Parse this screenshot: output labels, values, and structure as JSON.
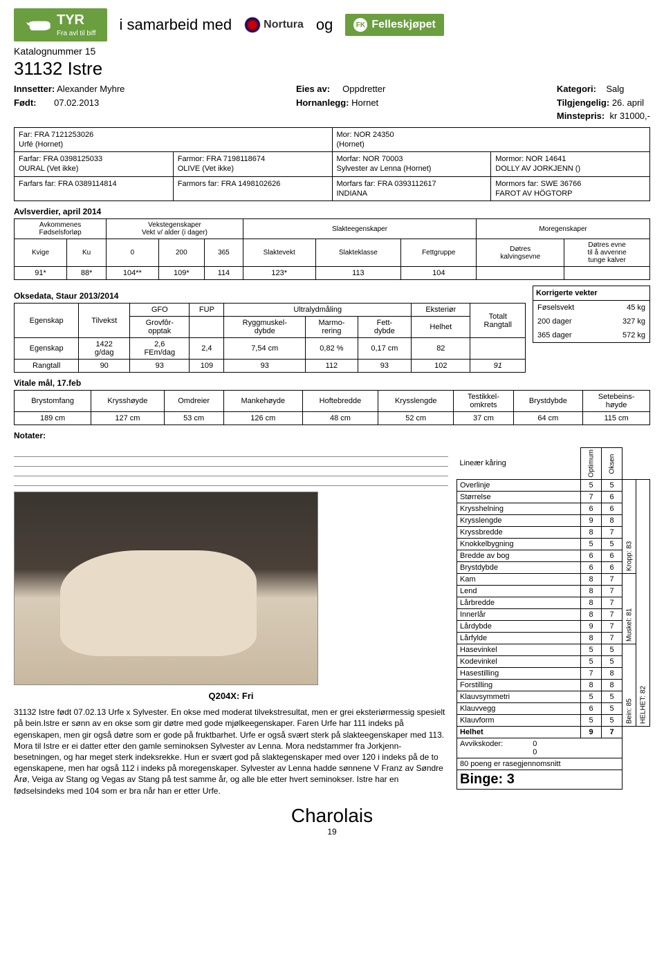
{
  "header": {
    "tyr_name": "TYR",
    "tyr_sub": "Fra avl til biff",
    "samarbeid": "i samarbeid med",
    "nortura": "Nortura",
    "og": "og",
    "fk": "Felleskjøpet"
  },
  "catalog": {
    "prefix": "Katalognummer",
    "num": "15",
    "animal": "31132 Istre",
    "innsetter_lbl": "Innsetter:",
    "innsetter": "Alexander Myhre",
    "fodt_lbl": "Født:",
    "fodt": "07.02.2013",
    "eies_lbl": "Eies av:",
    "eies": "Oppdretter",
    "horn_lbl": "Hornanlegg:",
    "horn": "Hornet",
    "kategori_lbl": "Kategori:",
    "kategori": "Salg",
    "tilgj_lbl": "Tilgjengelig:",
    "tilgj": "26. april",
    "minste_lbl": "Minstepris:",
    "minste": "kr 31000,-"
  },
  "pedigree": {
    "far": "Far: FRA 7121253026\nUrfé (Hornet)",
    "mor": "Mor: NOR 24350\n (Hornet)",
    "farfar": "Farfar: FRA 0398125033\nOURAL (Vet ikke)",
    "farmor": "Farmor: FRA 7198118674\nOLIVE (Vet ikke)",
    "morfar": "Morfar: NOR 70003\nSylvester av Lenna (Hornet)",
    "mormor": "Mormor: NOR 14641\nDOLLY AV JORKJENN ()",
    "farfars": "Farfars far: FRA 0389114814",
    "farmors": "Farmors far: FRA 1498102626",
    "morfars": "Morfars far: FRA 0393112617\nINDIANA",
    "mormors": "Mormors far: SWE 36766\nFAROT AV HÖGTORP"
  },
  "avls": {
    "title": "Avlsverdier, april 2014",
    "h1": "Avkommenes\nFødselsforløp",
    "h2": "Vekstegenskaper\nVekt v/ alder (i dager)",
    "h3": "Slakteegenskaper",
    "h4": "Moregenskaper",
    "cols": [
      "Kvige",
      "Ku",
      "0",
      "200",
      "365",
      "Slaktevekt",
      "Slakteklasse",
      "Fettgruppe",
      "Døtres\nkalvingsevne",
      "Døtres evne\ntil å avvenne\ntunge kalver"
    ],
    "vals": [
      "91*",
      "88*",
      "104**",
      "109*",
      "114",
      "123*",
      "113",
      "104",
      "",
      ""
    ]
  },
  "okse": {
    "title": "Oksedata, Staur 2013/2014",
    "h_egenskap": "Egenskap",
    "h_tilvekst": "Tilvekst",
    "h_gfo": "GFO",
    "h_fup": "FUP",
    "h_ultra": "Ultralydmåling",
    "h_ekst": "Eksteriør",
    "h_totalt": "Totalt\nRangtall",
    "h_grovfor": "Grovfôr-\nopptak",
    "h_rygg": "Ryggmuskel-\ndybde",
    "h_marmo": "Marmo-\nrering",
    "h_fett": "Fett-\ndybde",
    "h_helhet": "Helhet",
    "r_egenskap": "Egenskap",
    "v_tilvekst": "1422\ng/dag",
    "v_gfo": "2,6\nFEm/dag",
    "v_fup": "2,4",
    "v_rygg": "7,54 cm",
    "v_marmo": "0,82 %",
    "v_fett": "0,17 cm",
    "v_helhet": "82",
    "r_rangtall": "Rangtall",
    "rt": [
      "90",
      "93",
      "109",
      "93",
      "112",
      "93",
      "102",
      "91"
    ]
  },
  "korr": {
    "title": "Korrigerte vekter",
    "r1l": "Føselsvekt",
    "r1v": "45 kg",
    "r2l": "200 dager",
    "r2v": "327 kg",
    "r3l": "365 dager",
    "r3v": "572 kg"
  },
  "vitale": {
    "title": "Vitale mål, 17.feb",
    "cols": [
      "Brystomfang",
      "Krysshøyde",
      "Omdreier",
      "Mankehøyde",
      "Hoftebredde",
      "Krysslengde",
      "Testikkel-\nomkrets",
      "Brystdybde",
      "Setebeins-\nhøyde"
    ],
    "vals": [
      "189 cm",
      "127 cm",
      "53 cm",
      "126 cm",
      "48 cm",
      "52 cm",
      "37 cm",
      "64 cm",
      "115 cm"
    ]
  },
  "notes_lbl": "Notater:",
  "q_label": "Q204X: Fri",
  "description": "31132 Istre født 07.02.13 Urfe x Sylvester. En okse med moderat tilvekstresultat, men er grei eksteriørmessig spesielt på bein.Istre er sønn av en okse som gir døtre med gode mjølkeegenskaper. Faren Urfe har 111 indeks på egenskapen, men gir også døtre som er gode på fruktbarhet. Urfe er også svært sterk på slakteegenskaper med 113. Mora til Istre er ei datter etter den gamle seminoksen Sylvester av Lenna. Mora nedstammer fra Jorkjenn-besetningen, og har meget sterk indeksrekke. Hun er svært god på slaktegenskaper med over 120 i indeks på de to egenskapene, men har også 112 i indeks på moregenskaper. Sylvester av Lenna hadde sønnene V Franz av Søndre Årø, Veiga av Stang og Vegas av Stang på test samme år, og alle ble etter hvert seminokser. Istre har en fødselsindeks med 104 som er bra når han er etter Urfe.",
  "linear": {
    "title": "Lineær kåring",
    "opt": "Optimum",
    "oks": "Oksen",
    "rows": [
      [
        "Overlinje",
        "5",
        "5"
      ],
      [
        "Størrelse",
        "7",
        "6"
      ],
      [
        "Krysshelning",
        "6",
        "6"
      ],
      [
        "Krysslengde",
        "9",
        "8"
      ],
      [
        "Kryssbredde",
        "8",
        "7"
      ],
      [
        "Knokkelbygning",
        "5",
        "5"
      ],
      [
        "Bredde av bog",
        "6",
        "6"
      ],
      [
        "Brystdybde",
        "6",
        "6"
      ],
      [
        "Kam",
        "8",
        "7"
      ],
      [
        "Lend",
        "8",
        "7"
      ],
      [
        "Lårbredde",
        "8",
        "7"
      ],
      [
        "Innerlår",
        "8",
        "7"
      ],
      [
        "Lårdybde",
        "9",
        "7"
      ],
      [
        "Lårfylde",
        "8",
        "7"
      ],
      [
        "Hasevinkel",
        "5",
        "5"
      ],
      [
        "Kodevinkel",
        "5",
        "5"
      ],
      [
        "Hasestilling",
        "7",
        "8"
      ],
      [
        "Forstilling",
        "8",
        "8"
      ],
      [
        "Klauvsymmetri",
        "5",
        "5"
      ],
      [
        "Klauvvegg",
        "6",
        "5"
      ],
      [
        "Klauvform",
        "5",
        "5"
      ],
      [
        "Helhet",
        "9",
        "7"
      ]
    ],
    "groups": [
      {
        "label": "Kropp: 83",
        "span": 8
      },
      {
        "label": "Muskel: 81",
        "span": 6
      },
      {
        "label": "Bein: 85",
        "span": 7
      }
    ],
    "helhet_label": "HELHET: 82",
    "avvik_lbl": "Avvikskoder:",
    "avvik_vals": "0\n0",
    "poeng": "80 poeng er rasegjennomsnitt",
    "binge": "Binge: 3"
  },
  "footer": "Charolais",
  "page_num": "19"
}
